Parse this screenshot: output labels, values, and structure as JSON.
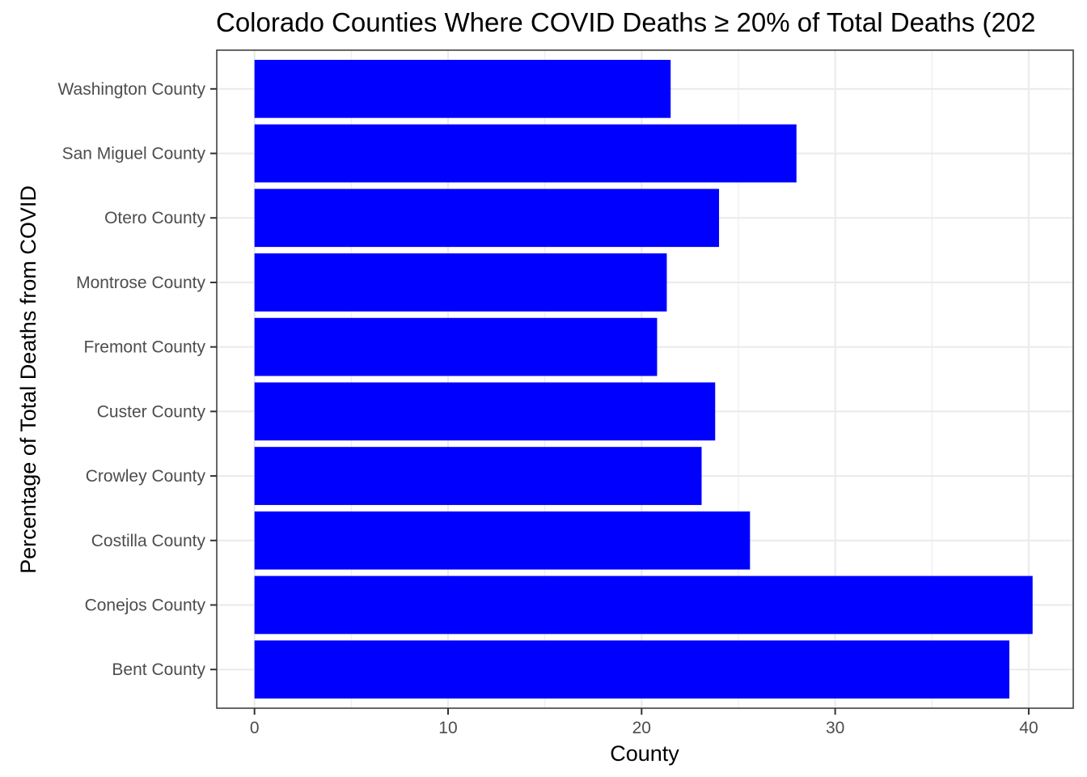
{
  "chart_data": {
    "type": "bar",
    "orientation": "horizontal",
    "title": "Colorado Counties Where COVID Deaths ≥ 20% of Total Deaths (202",
    "xlabel": "County",
    "ylabel": "Percentage of Total Deaths from COVID",
    "categories": [
      "Bent County",
      "Conejos County",
      "Costilla County",
      "Crowley County",
      "Custer County",
      "Fremont County",
      "Montrose County",
      "Otero County",
      "San Miguel County",
      "Washington County"
    ],
    "values": [
      39.0,
      40.2,
      25.6,
      23.1,
      23.8,
      20.8,
      21.3,
      24.0,
      28.0,
      21.5
    ],
    "xlim": [
      -1.95,
      42.3
    ],
    "x_ticks": [
      0,
      10,
      20,
      30,
      40
    ],
    "x_minor_ticks": [
      5,
      15,
      25,
      35
    ],
    "bar_color": "#0000ff",
    "grid": true,
    "theme": "bw"
  }
}
